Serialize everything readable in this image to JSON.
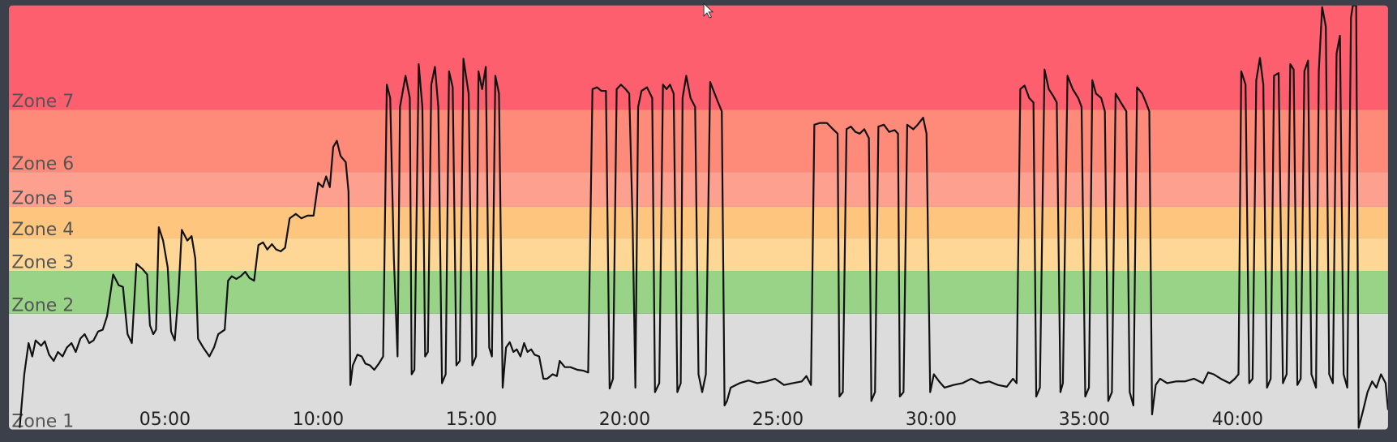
{
  "chart_data": {
    "type": "line",
    "zones": [
      {
        "name": "Zone 1",
        "from": 0,
        "to": 130,
        "color": "#dcdcdc"
      },
      {
        "name": "Zone 2",
        "from": 130,
        "to": 178,
        "color": "#98d388"
      },
      {
        "name": "Zone 3",
        "from": 178,
        "to": 215,
        "color": "#fed796"
      },
      {
        "name": "Zone 4",
        "from": 215,
        "to": 250,
        "color": "#fec57e"
      },
      {
        "name": "Zone 5",
        "from": 250,
        "to": 289,
        "color": "#fea090"
      },
      {
        "name": "Zone 6",
        "from": 289,
        "to": 359,
        "color": "#fe8a7a"
      },
      {
        "name": "Zone 7",
        "from": 359,
        "to": 476,
        "color": "#fe5f6e"
      }
    ],
    "xlim": [
      -0.09,
      44.91
    ],
    "ylim": [
      0,
      476
    ],
    "xticks": [
      {
        "value": 5,
        "label": "05:00"
      },
      {
        "value": 10,
        "label": "10:00"
      },
      {
        "value": 15,
        "label": "15:00"
      },
      {
        "value": 20,
        "label": "20:00"
      },
      {
        "value": 25,
        "label": "25:00"
      },
      {
        "value": 30,
        "label": "30:00"
      },
      {
        "value": 35,
        "label": "35:00"
      },
      {
        "value": 40,
        "label": "40:00"
      }
    ],
    "color": "#111111",
    "x": [
      0.26,
      0.41,
      0.55,
      0.67,
      0.78,
      0.96,
      1.08,
      1.22,
      1.37,
      1.51,
      1.66,
      1.8,
      1.95,
      2.09,
      2.24,
      2.38,
      2.53,
      2.67,
      2.82,
      2.97,
      3.11,
      3.31,
      3.49,
      3.63,
      3.78,
      3.92,
      4.07,
      4.27,
      4.42,
      4.51,
      4.62,
      4.71,
      4.8,
      4.94,
      5.09,
      5.2,
      5.32,
      5.44,
      5.55,
      5.73,
      5.87,
      5.99,
      6.08,
      6.25,
      6.45,
      6.6,
      6.74,
      6.95,
      7.06,
      7.18,
      7.33,
      7.47,
      7.62,
      7.76,
      7.91,
      8.05,
      8.2,
      8.34,
      8.49,
      8.63,
      8.78,
      8.92,
      9.07,
      9.27,
      9.45,
      9.65,
      9.85,
      10.0,
      10.15,
      10.26,
      10.38,
      10.49,
      10.61,
      10.73,
      10.9,
      10.99,
      11.05,
      11.13,
      11.28,
      11.42,
      11.54,
      11.69,
      11.83,
      11.98,
      12.12,
      12.24,
      12.35,
      12.47,
      12.59,
      12.67,
      12.85,
      12.99,
      13.05,
      13.14,
      13.28,
      13.4,
      13.49,
      13.58,
      13.69,
      13.81,
      13.92,
      14.04,
      14.16,
      14.27,
      14.39,
      14.51,
      14.62,
      14.74,
      14.91,
      15.03,
      15.15,
      15.23,
      15.35,
      15.47,
      15.58,
      15.67,
      15.78,
      15.9,
      16.02,
      16.13,
      16.25,
      16.37,
      16.48,
      16.6,
      16.72,
      16.83,
      16.95,
      17.06,
      17.21,
      17.35,
      17.47,
      17.65,
      17.79,
      17.88,
      18.05,
      18.23,
      18.46,
      18.66,
      18.81,
      18.95,
      19.1,
      19.24,
      19.39,
      19.51,
      19.62,
      19.74,
      19.88,
      20.03,
      20.15,
      20.26,
      20.35,
      20.44,
      20.55,
      20.73,
      20.9,
      20.99,
      21.13,
      21.25,
      21.37,
      21.48,
      21.6,
      21.72,
      21.83,
      21.89,
      22.01,
      22.15,
      22.3,
      22.41,
      22.53,
      22.65,
      22.79,
      22.88,
      23.05,
      23.17,
      23.26,
      23.34,
      23.46,
      23.75,
      24.04,
      24.33,
      24.62,
      24.91,
      25.2,
      25.49,
      25.78,
      25.93,
      26.08,
      26.19,
      26.37,
      26.6,
      26.8,
      26.95,
      27.01,
      27.12,
      27.24,
      27.38,
      27.53,
      27.67,
      27.82,
      27.97,
      28.05,
      28.17,
      28.28,
      28.46,
      28.63,
      28.81,
      28.92,
      28.98,
      29.1,
      29.22,
      29.42,
      29.56,
      29.74,
      29.85,
      29.97,
      30.09,
      30.26,
      30.44,
      30.73,
      31.02,
      31.31,
      31.6,
      31.89,
      32.18,
      32.47,
      32.67,
      32.79,
      32.91,
      33.05,
      33.2,
      33.34,
      33.43,
      33.55,
      33.7,
      33.84,
      33.99,
      34.1,
      34.22,
      34.3,
      34.45,
      34.62,
      34.8,
      34.91,
      35.03,
      35.15,
      35.26,
      35.38,
      35.55,
      35.67,
      35.78,
      35.9,
      36.02,
      36.19,
      36.37,
      36.48,
      36.6,
      36.72,
      36.89,
      37.01,
      37.12,
      37.21,
      37.33,
      37.47,
      37.7,
      37.99,
      38.28,
      38.58,
      38.87,
      39.04,
      39.22,
      39.45,
      39.74,
      39.91,
      40.03,
      40.12,
      40.26,
      40.38,
      40.49,
      40.61,
      40.73,
      40.84,
      40.96,
      41.08,
      41.19,
      41.34,
      41.48,
      41.6,
      41.72,
      41.83,
      41.95,
      42.06,
      42.18,
      42.3,
      42.41,
      42.56,
      42.65,
      42.76,
      42.88,
      42.99,
      43.11,
      43.23,
      43.34,
      43.46,
      43.58,
      43.7,
      43.76,
      43.87,
      43.95,
      44.1,
      44.24,
      44.39,
      44.53,
      44.68,
      44.83,
      44.91
    ],
    "values": [
      2,
      62,
      97,
      82,
      100,
      94,
      99,
      84,
      77,
      87,
      82,
      92,
      97,
      87,
      102,
      107,
      97,
      100,
      110,
      112,
      127,
      174,
      162,
      160,
      107,
      97,
      186,
      180,
      174,
      117,
      107,
      112,
      227,
      212,
      182,
      110,
      100,
      152,
      224,
      212,
      217,
      192,
      102,
      92,
      82,
      92,
      107,
      112,
      167,
      172,
      169,
      172,
      177,
      170,
      167,
      207,
      210,
      202,
      208,
      202,
      200,
      204,
      237,
      242,
      237,
      240,
      240,
      277,
      272,
      284,
      272,
      317,
      324,
      307,
      300,
      267,
      50,
      72,
      84,
      82,
      74,
      72,
      67,
      74,
      82,
      387,
      372,
      192,
      82,
      362,
      397,
      372,
      62,
      67,
      410,
      362,
      82,
      87,
      387,
      407,
      362,
      52,
      62,
      402,
      384,
      72,
      77,
      416,
      377,
      72,
      82,
      402,
      382,
      407,
      92,
      82,
      397,
      377,
      47,
      92,
      98,
      87,
      90,
      82,
      97,
      87,
      90,
      84,
      82,
      57,
      57,
      62,
      60,
      77,
      70,
      70,
      67,
      66,
      64,
      382,
      384,
      380,
      380,
      46,
      57,
      382,
      387,
      382,
      377,
      232,
      47,
      362,
      380,
      384,
      372,
      42,
      52,
      387,
      382,
      387,
      377,
      42,
      52,
      372,
      397,
      372,
      362,
      62,
      42,
      62,
      390,
      382,
      367,
      357,
      27,
      32,
      47,
      52,
      55,
      52,
      54,
      57,
      50,
      52,
      54,
      60,
      50,
      342,
      344,
      344,
      337,
      332,
      37,
      42,
      337,
      340,
      334,
      332,
      337,
      327,
      32,
      42,
      340,
      342,
      334,
      336,
      332,
      37,
      42,
      342,
      337,
      342,
      350,
      332,
      42,
      62,
      54,
      47,
      50,
      52,
      57,
      52,
      54,
      50,
      48,
      57,
      52,
      382,
      386,
      372,
      367,
      37,
      47,
      404,
      382,
      374,
      367,
      42,
      52,
      397,
      382,
      372,
      362,
      37,
      47,
      392,
      377,
      372,
      357,
      32,
      42,
      377,
      367,
      357,
      42,
      27,
      384,
      377,
      367,
      357,
      17,
      50,
      57,
      52,
      54,
      54,
      57,
      52,
      64,
      62,
      57,
      52,
      57,
      62,
      402,
      387,
      52,
      57,
      392,
      417,
      387,
      47,
      57,
      397,
      400,
      52,
      62,
      410,
      404,
      50,
      57,
      402,
      414,
      62,
      47,
      402,
      474,
      452,
      62,
      52,
      422,
      442,
      62,
      47,
      462,
      476,
      476,
      2,
      22,
      42,
      54,
      47,
      62,
      52,
      22
    ]
  }
}
